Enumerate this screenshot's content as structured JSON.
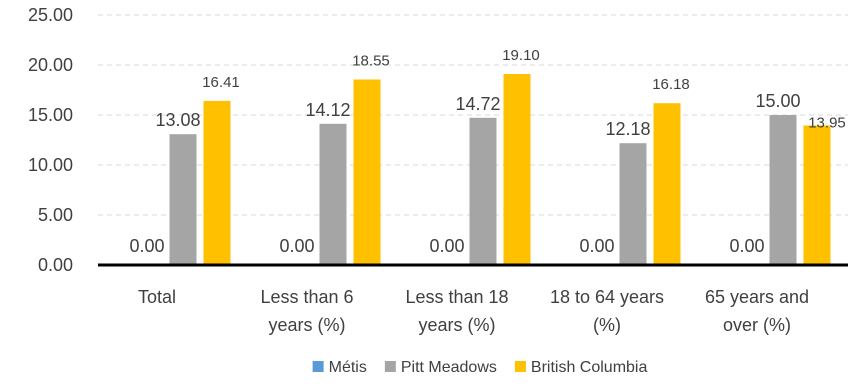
{
  "chart_data": {
    "type": "bar",
    "categories": [
      [
        "Total"
      ],
      [
        "Less than 6",
        "years (%)"
      ],
      [
        "Less than 18",
        "years (%)"
      ],
      [
        "18 to 64 years",
        "(%)"
      ],
      [
        "65 years and",
        "over (%)"
      ]
    ],
    "series": [
      {
        "name": "Métis",
        "color": "#5b9bd5",
        "values": [
          0.0,
          0.0,
          0.0,
          0.0,
          0.0
        ],
        "labels": [
          "0.00",
          "0.00",
          "0.00",
          "0.00",
          "0.00"
        ]
      },
      {
        "name": "Pitt Meadows",
        "color": "#a5a5a5",
        "values": [
          13.08,
          14.12,
          14.72,
          12.18,
          15.0
        ],
        "labels": [
          "13.08",
          "14.12",
          "14.72",
          "12.18",
          "15.00"
        ]
      },
      {
        "name": "British Columbia",
        "color": "#ffc000",
        "values": [
          16.41,
          18.55,
          19.1,
          16.18,
          13.95
        ],
        "labels": [
          "16.41",
          "18.55",
          "19.10",
          "16.18",
          "13.95"
        ]
      }
    ],
    "yticks": [
      "0.00",
      "5.00",
      "10.00",
      "15.00",
      "20.00",
      "25.00"
    ],
    "ylim": [
      0,
      25
    ],
    "grid": true,
    "legend_position": "bottom",
    "title": "",
    "xlabel": "",
    "ylabel": ""
  }
}
